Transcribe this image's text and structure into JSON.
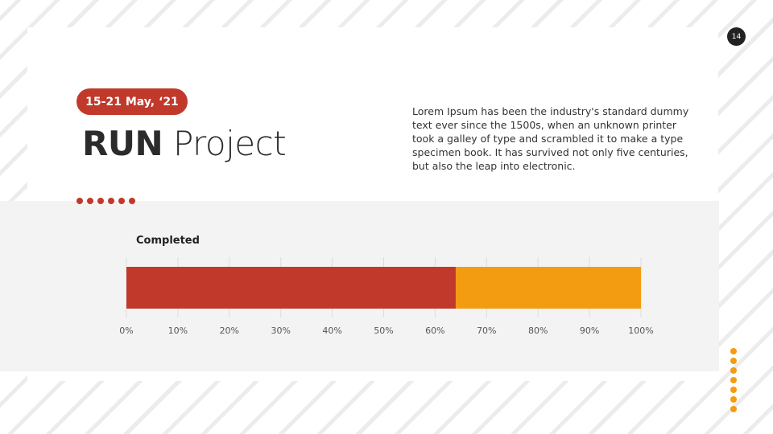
{
  "page_number": "14",
  "badge": "15-21 May, ‘21",
  "title": {
    "bold": "RUN",
    "light": "Project"
  },
  "description": "Lorem Ipsum has been the industry's standard dummy text ever since the 1500s, when an unknown printer took a galley of type and scrambled it to make a type specimen book. It has survived not only five centuries, but also the leap into electronic.",
  "colors": {
    "accent": "#c0392b",
    "secondary": "#f39c12",
    "band": "#f3f3f3"
  },
  "chart_data": {
    "type": "bar",
    "orientation": "horizontal-stacked",
    "categories": [
      "Completed"
    ],
    "series": [
      {
        "values": [
          64
        ],
        "color": "#c0392b"
      },
      {
        "values": [
          36
        ],
        "color": "#f39c12"
      }
    ],
    "xlim": [
      0,
      100
    ],
    "xticks": [
      "0%",
      "10%",
      "20%",
      "30%",
      "40%",
      "50%",
      "60%",
      "70%",
      "80%",
      "90%",
      "100%"
    ],
    "grid": true
  }
}
